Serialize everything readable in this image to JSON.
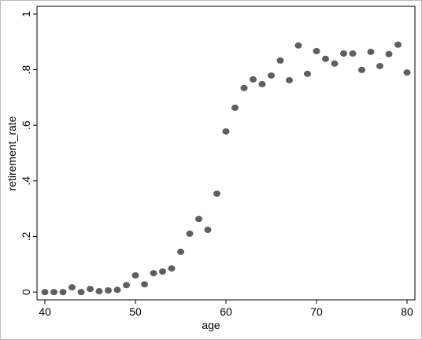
{
  "chart_data": {
    "type": "scatter",
    "x_label": "age",
    "y_label": "retirement_rate",
    "x": [
      40,
      41,
      42,
      43,
      44,
      45,
      46,
      47,
      48,
      49,
      50,
      51,
      52,
      53,
      54,
      55,
      56,
      57,
      58,
      59,
      60,
      61,
      62,
      63,
      64,
      65,
      66,
      67,
      68,
      69,
      70,
      71,
      72,
      73,
      74,
      75,
      76,
      77,
      78,
      79,
      80
    ],
    "values": [
      0,
      0,
      0,
      0.017,
      0,
      0.011,
      0.003,
      0.006,
      0.008,
      0.025,
      0.06,
      0.028,
      0.068,
      0.074,
      0.085,
      0.145,
      0.21,
      0.263,
      0.224,
      0.354,
      0.578,
      0.663,
      0.734,
      0.765,
      0.748,
      0.779,
      0.833,
      0.762,
      0.887,
      0.785,
      0.867,
      0.839,
      0.822,
      0.858,
      0.858,
      0.799,
      0.864,
      0.813,
      0.856,
      0.89,
      0.79
    ],
    "color": "#5f5f5f",
    "xlim": [
      39.13,
      80.87
    ],
    "ylim": [
      -0.028,
      1.028
    ],
    "xticks": [
      40,
      50,
      60,
      70,
      80
    ],
    "yticks": [
      0,
      {
        "value": 0.2,
        "label": ".2"
      },
      {
        "value": 0.4,
        "label": ".4"
      },
      {
        "value": 0.6,
        "label": ".6"
      },
      {
        "value": 0.8,
        "label": ".8"
      },
      1
    ]
  }
}
